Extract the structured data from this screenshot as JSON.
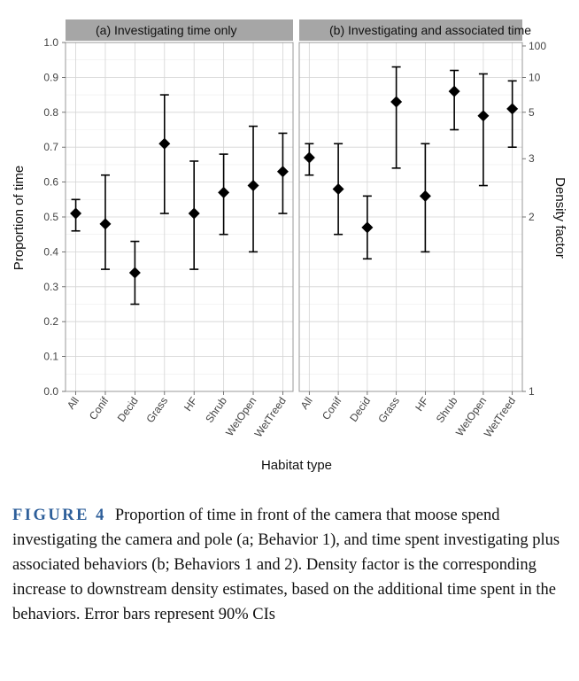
{
  "chart_data": {
    "type": "scatter",
    "subtype": "point-range (diamond markers with 90% CI error bars), two facets",
    "xlabel": "Habitat type",
    "ylabel": "Proportion of time",
    "y2label": "Density factor",
    "ylim": [
      0,
      1
    ],
    "yticks": [
      "0.0",
      "0.1",
      "0.2",
      "0.3",
      "0.4",
      "0.5",
      "0.6",
      "0.7",
      "0.8",
      "0.9",
      "1.0"
    ],
    "y2ticks": [
      {
        "label": "1",
        "proportion": 0.0
      },
      {
        "label": "2",
        "proportion": 0.5
      },
      {
        "label": "3",
        "proportion": 0.667
      },
      {
        "label": "5",
        "proportion": 0.8
      },
      {
        "label": "10",
        "proportion": 0.9
      },
      {
        "label": "100",
        "proportion": 0.99
      }
    ],
    "categories": [
      "All",
      "Conif",
      "Decid",
      "Grass",
      "HF",
      "Shrub",
      "WetOpen",
      "WetTreed"
    ],
    "grid": true,
    "background": "#ffffff",
    "strip_color": "#a6a6a6",
    "marker_color": "#000000",
    "panels": [
      {
        "title": "(a) Investigating time only",
        "points": [
          {
            "x": "All",
            "y": 0.51,
            "lower": 0.46,
            "upper": 0.55
          },
          {
            "x": "Conif",
            "y": 0.48,
            "lower": 0.35,
            "upper": 0.62
          },
          {
            "x": "Decid",
            "y": 0.34,
            "lower": 0.25,
            "upper": 0.43
          },
          {
            "x": "Grass",
            "y": 0.71,
            "lower": 0.51,
            "upper": 0.85
          },
          {
            "x": "HF",
            "y": 0.51,
            "lower": 0.35,
            "upper": 0.66
          },
          {
            "x": "Shrub",
            "y": 0.57,
            "lower": 0.45,
            "upper": 0.68
          },
          {
            "x": "WetOpen",
            "y": 0.59,
            "lower": 0.4,
            "upper": 0.76
          },
          {
            "x": "WetTreed",
            "y": 0.63,
            "lower": 0.51,
            "upper": 0.74
          }
        ]
      },
      {
        "title": "(b) Investigating and associated time",
        "points": [
          {
            "x": "All",
            "y": 0.67,
            "lower": 0.62,
            "upper": 0.71
          },
          {
            "x": "Conif",
            "y": 0.58,
            "lower": 0.45,
            "upper": 0.71
          },
          {
            "x": "Decid",
            "y": 0.47,
            "lower": 0.38,
            "upper": 0.56
          },
          {
            "x": "Grass",
            "y": 0.83,
            "lower": 0.64,
            "upper": 0.93
          },
          {
            "x": "HF",
            "y": 0.56,
            "lower": 0.4,
            "upper": 0.71
          },
          {
            "x": "Shrub",
            "y": 0.86,
            "lower": 0.75,
            "upper": 0.92
          },
          {
            "x": "WetOpen",
            "y": 0.79,
            "lower": 0.59,
            "upper": 0.91
          },
          {
            "x": "WetTreed",
            "y": 0.81,
            "lower": 0.7,
            "upper": 0.89
          }
        ]
      }
    ]
  },
  "caption": {
    "label": "FIGURE 4",
    "text": "Proportion of time in front of the camera that moose spend investigating the camera and pole (a; Behavior 1), and time spent investigating plus associated behaviors (b; Behaviors 1 and 2). Density factor is the corresponding increase to downstream density estimates, based on the additional time spent in the behaviors. Error bars represent 90% CIs"
  }
}
